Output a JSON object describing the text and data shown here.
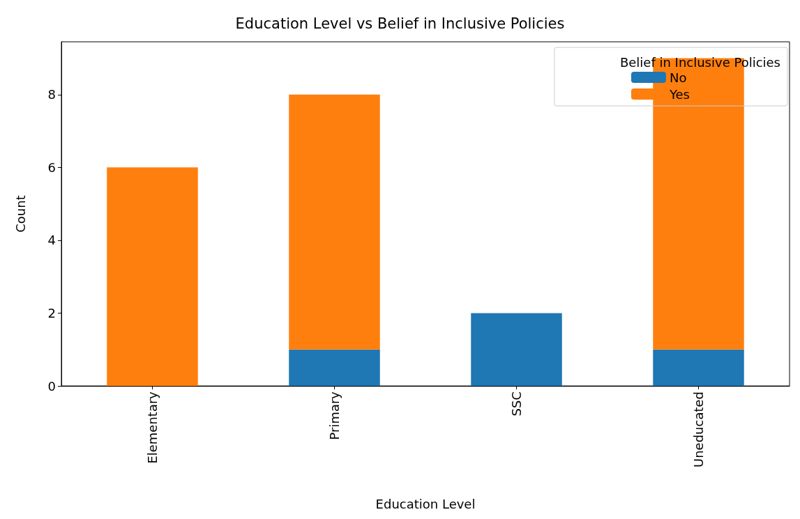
{
  "chart_data": {
    "type": "bar",
    "title": "Education Level vs Belief in Inclusive Policies",
    "xlabel": "Education Level",
    "ylabel": "Count",
    "legend_title": "Belief in Inclusive Policies",
    "categories": [
      "Elementary",
      "Primary",
      "SSC",
      "Uneducated"
    ],
    "stacked": true,
    "series": [
      {
        "name": "No",
        "color": "#1f77b4",
        "values": [
          0,
          1,
          2,
          1
        ]
      },
      {
        "name": "Yes",
        "color": "#ff7f0e",
        "values": [
          6,
          7,
          0,
          8
        ]
      }
    ],
    "ylim": [
      0,
      9.45
    ],
    "yticks": [
      0,
      2,
      4,
      6,
      8
    ],
    "grid": false,
    "legend": "top right"
  }
}
